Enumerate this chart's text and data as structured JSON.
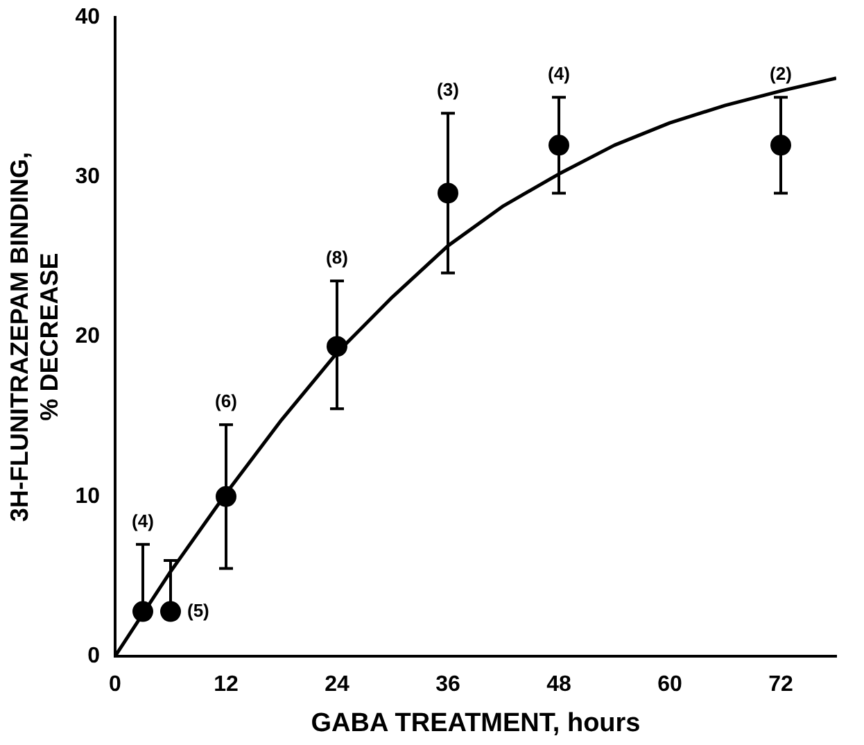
{
  "chart_data": {
    "type": "scatter",
    "xlabel": "GABA TREATMENT, hours",
    "ylabel": "3H-FLUNITRAZEPAM BINDING,\n% DECREASE",
    "xlim": [
      0,
      78
    ],
    "xticks": [
      0,
      12,
      24,
      36,
      48,
      60,
      72
    ],
    "ylim": [
      0,
      40
    ],
    "yticks": [
      0,
      10,
      20,
      30,
      40
    ],
    "grid": false,
    "legend": false,
    "series": [
      {
        "color": "#000000",
        "marker": "circle",
        "x": [
          3,
          6,
          12,
          24,
          36,
          48,
          72
        ],
        "values": [
          2.8,
          2.8,
          10,
          19.4,
          29,
          32,
          32
        ],
        "errors": [
          [
            2.8,
            7
          ],
          [
            2.8,
            6
          ],
          [
            5.5,
            14.5
          ],
          [
            15.5,
            23.5
          ],
          [
            24,
            34
          ],
          [
            29,
            35
          ],
          [
            29,
            35
          ]
        ]
      },
      {
        "type": "line",
        "color": "#000000",
        "marker": "none",
        "line_style": "solid",
        "x": [
          0,
          6,
          12,
          18,
          24,
          30,
          36,
          42,
          48,
          54,
          60,
          66,
          72,
          78
        ],
        "values": [
          0,
          5.3,
          10.2,
          14.8,
          19,
          22.5,
          25.7,
          28.2,
          30.2,
          32,
          33.4,
          34.5,
          35.4,
          36.2
        ]
      }
    ],
    "annotations": [
      "(4)",
      "(5)",
      "(6)",
      "(8)",
      "(3)",
      "(4)",
      "(2)"
    ]
  }
}
